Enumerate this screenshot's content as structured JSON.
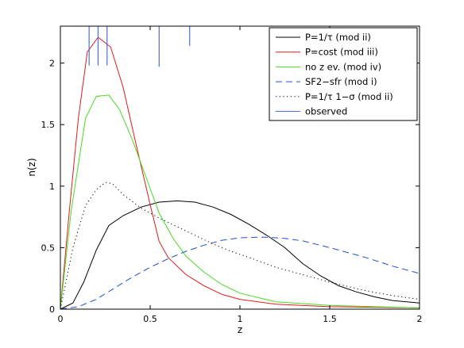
{
  "chart_data": {
    "type": "line",
    "xlabel": "z",
    "ylabel": "n(z)",
    "xlim": [
      0,
      2
    ],
    "ylim": [
      0,
      2.3
    ],
    "x_ticks": [
      0,
      0.5,
      1,
      1.5,
      2
    ],
    "x_tick_labels": [
      "0",
      "0.5",
      "1",
      "1.5",
      "2"
    ],
    "y_ticks": [
      0,
      0.5,
      1,
      1.5,
      2
    ],
    "y_tick_labels": [
      "0",
      "0.5",
      "1",
      "1.5",
      "2"
    ],
    "grid": false,
    "legend_position": "top-right",
    "series": [
      {
        "name": "P=1/τ (mod ii)",
        "color": "#000000",
        "style": "solid",
        "x": [
          0,
          0.07,
          0.13,
          0.2,
          0.27,
          0.35,
          0.45,
          0.55,
          0.65,
          0.75,
          0.85,
          0.95,
          1.05,
          1.15,
          1.25,
          1.35,
          1.45,
          1.55,
          1.65,
          1.75,
          1.85,
          2.0
        ],
        "y": [
          0,
          0.05,
          0.22,
          0.48,
          0.68,
          0.76,
          0.83,
          0.87,
          0.88,
          0.87,
          0.83,
          0.77,
          0.69,
          0.6,
          0.5,
          0.37,
          0.27,
          0.19,
          0.14,
          0.1,
          0.07,
          0.05
        ]
      },
      {
        "name": "P=cost (mod iii)",
        "color": "#e41a1c",
        "style": "solid",
        "x": [
          0,
          0.05,
          0.1,
          0.15,
          0.21,
          0.28,
          0.35,
          0.42,
          0.5,
          0.55,
          0.6,
          0.7,
          0.8,
          0.9,
          1.0,
          1.2,
          1.5,
          2.0
        ],
        "y": [
          0,
          0.8,
          1.55,
          2.09,
          2.21,
          2.13,
          1.8,
          1.35,
          0.85,
          0.55,
          0.42,
          0.28,
          0.19,
          0.12,
          0.08,
          0.04,
          0.02,
          0.01
        ],
        "x_override": [
          0,
          0.05,
          0.1,
          0.15,
          0.21,
          0.28,
          0.35,
          0.42,
          0.5,
          0.55,
          0.6,
          0.7,
          0.8,
          0.9,
          1.0,
          1.2,
          1.5,
          2.0
        ]
      },
      {
        "name": "no z ev. (mod iv)",
        "color": "#44dd22",
        "style": "solid",
        "x": [
          0,
          0.06,
          0.14,
          0.2,
          0.27,
          0.33,
          0.4,
          0.48,
          0.55,
          0.63,
          0.7,
          0.8,
          0.9,
          1.0,
          1.2,
          1.5,
          2.0
        ],
        "y": [
          0,
          0.8,
          1.55,
          1.73,
          1.74,
          1.62,
          1.38,
          1.06,
          0.78,
          0.57,
          0.43,
          0.3,
          0.2,
          0.13,
          0.06,
          0.03,
          0.01
        ]
      },
      {
        "name": "SF2−sfr (mod i)",
        "color": "#1f4fd8",
        "style": "dashed",
        "x": [
          0,
          0.1,
          0.2,
          0.3,
          0.4,
          0.5,
          0.6,
          0.7,
          0.8,
          0.9,
          1.0,
          1.1,
          1.15,
          1.25,
          1.35,
          1.5,
          1.7,
          1.85,
          2.0
        ],
        "y": [
          0,
          0.02,
          0.08,
          0.17,
          0.26,
          0.34,
          0.41,
          0.47,
          0.52,
          0.56,
          0.58,
          0.585,
          0.585,
          0.575,
          0.555,
          0.5,
          0.42,
          0.35,
          0.29
        ]
      },
      {
        "name": "P=1/τ 1−σ (mod ii)",
        "color": "#000000",
        "style": "dotted",
        "x": [
          0,
          0.07,
          0.14,
          0.2,
          0.25,
          0.29,
          0.35,
          0.45,
          0.55,
          0.65,
          0.75,
          0.85,
          0.95,
          1.05,
          1.2,
          1.35,
          1.5,
          1.7,
          1.85,
          2.0
        ],
        "y": [
          0,
          0.5,
          0.84,
          0.97,
          1.03,
          1.02,
          0.93,
          0.82,
          0.74,
          0.67,
          0.6,
          0.53,
          0.47,
          0.42,
          0.34,
          0.28,
          0.22,
          0.15,
          0.11,
          0.08
        ]
      }
    ],
    "observed": {
      "name": "observed",
      "color": "#4a6fd6",
      "style": "solid",
      "z": [
        0.16,
        0.21,
        0.26,
        0.55,
        0.72
      ],
      "y_top": 2.3,
      "y_bottom": [
        1.98,
        1.98,
        1.98,
        1.97,
        2.14
      ]
    }
  }
}
